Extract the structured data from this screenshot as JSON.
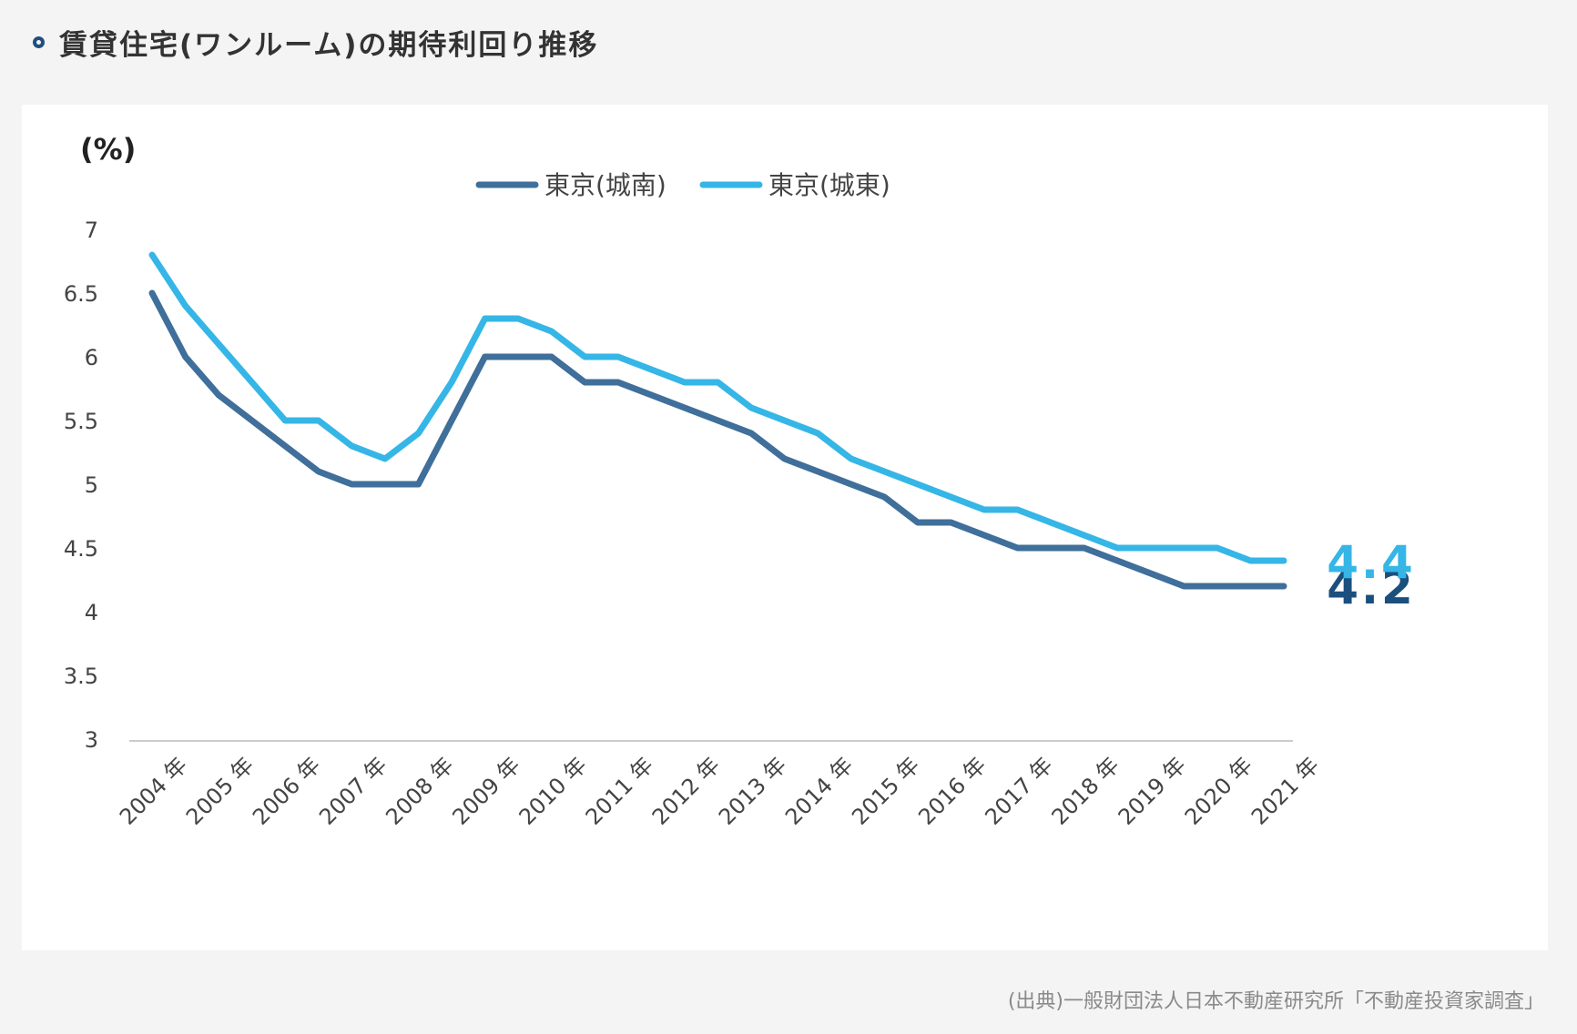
{
  "header": {
    "title": "賃貸住宅(ワンルーム)の期待利回り推移"
  },
  "source": "(出典)一般財団法人日本不動産研究所「不動産投資家調査」",
  "colors": {
    "tokyo_jonan": "#3f6f9a",
    "tokyo_joto": "#35b6e6",
    "label_dark": "#1b4f7d",
    "axis": "#cccccc",
    "text": "#444444"
  },
  "chart_data": {
    "type": "line",
    "unit_label": "(%)",
    "ylim": [
      3,
      7
    ],
    "yticks": [
      "3",
      "3.5",
      "4",
      "4.5",
      "5",
      "5.5",
      "6",
      "6.5",
      "7"
    ],
    "grid": false,
    "legend_position": "top-center",
    "categories": [
      "2004 年",
      "2005 年",
      "2006 年",
      "2007 年",
      "2008 年",
      "2009 年",
      "2010 年",
      "2011 年",
      "2012 年",
      "2013 年",
      "2014 年",
      "2015 年",
      "2016 年",
      "2017 年",
      "2018 年",
      "2019 年",
      "2020 年",
      "2021 年"
    ],
    "x": [
      2004,
      2004.5,
      2005,
      2005.5,
      2006,
      2006.5,
      2007,
      2007.5,
      2008,
      2008.5,
      2009,
      2009.5,
      2010,
      2010.5,
      2011,
      2011.5,
      2012,
      2012.5,
      2013,
      2013.5,
      2014,
      2014.5,
      2015,
      2015.5,
      2016,
      2016.5,
      2017,
      2017.5,
      2018,
      2018.5,
      2019,
      2019.5,
      2020,
      2020.5,
      2021
    ],
    "series": [
      {
        "name": "東京(城南)",
        "color": "#3f6f9a",
        "values": [
          6.5,
          6.0,
          5.7,
          5.5,
          5.3,
          5.1,
          5.0,
          5.0,
          5.0,
          5.5,
          6.0,
          6.0,
          6.0,
          5.8,
          5.8,
          5.7,
          5.6,
          5.5,
          5.4,
          5.2,
          5.1,
          5.0,
          4.9,
          4.7,
          4.7,
          4.6,
          4.5,
          4.5,
          4.5,
          4.4,
          4.3,
          4.2,
          4.2,
          4.2,
          4.2
        ],
        "end_label": "4.2"
      },
      {
        "name": "東京(城東)",
        "color": "#35b6e6",
        "values": [
          6.8,
          6.4,
          6.1,
          5.8,
          5.5,
          5.5,
          5.3,
          5.2,
          5.4,
          5.8,
          6.3,
          6.3,
          6.2,
          6.0,
          6.0,
          5.9,
          5.8,
          5.8,
          5.6,
          5.5,
          5.4,
          5.2,
          5.1,
          5.0,
          4.9,
          4.8,
          4.8,
          4.7,
          4.6,
          4.5,
          4.5,
          4.5,
          4.5,
          4.4,
          4.4
        ],
        "end_label": "4.4"
      }
    ]
  }
}
